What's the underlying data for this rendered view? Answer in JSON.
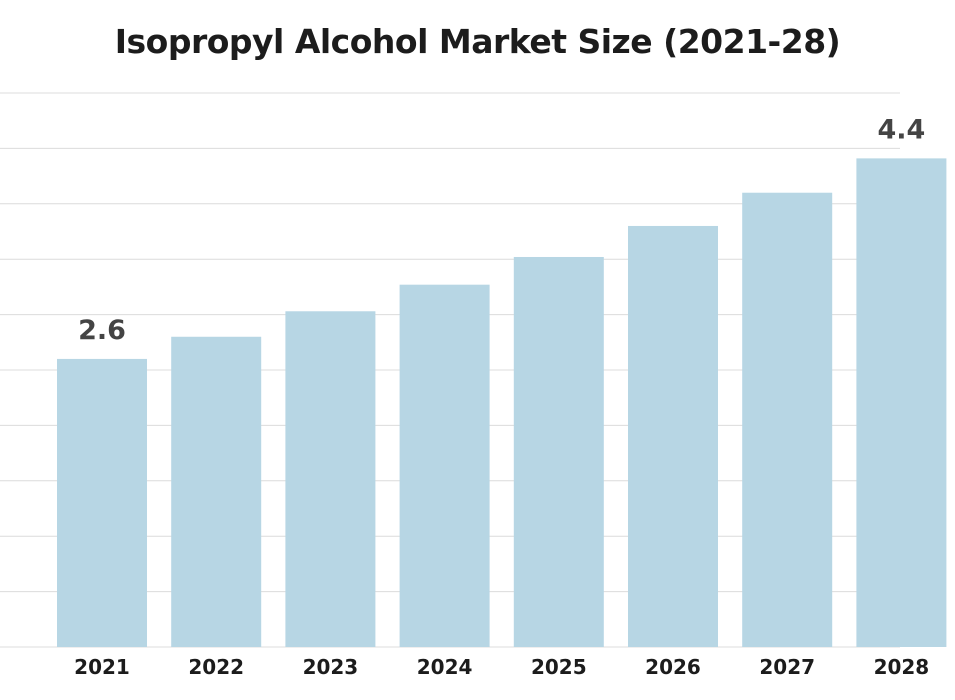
{
  "chart_data": {
    "type": "bar",
    "title": "Isopropyl Alcohol Market Size (2021-28)",
    "xlabel": "",
    "ylabel": "",
    "categories": [
      "2021",
      "2022",
      "2023",
      "2024",
      "2025",
      "2026",
      "2027",
      "2028"
    ],
    "values": [
      2.6,
      2.8,
      3.03,
      3.27,
      3.52,
      3.8,
      4.1,
      4.41
    ],
    "data_labels": [
      {
        "index": 0,
        "text": "2.6"
      },
      {
        "index": 7,
        "text": "4.4"
      }
    ],
    "ylim": [
      0,
      5
    ],
    "gridlines": [
      0,
      0.5,
      1.0,
      1.5,
      2.0,
      2.5,
      3.0,
      3.5,
      4.0,
      4.5,
      5.0
    ],
    "grid": true,
    "legend": "none",
    "bar_color": "#b7d6e4",
    "grid_color": "#dcdcdc"
  }
}
